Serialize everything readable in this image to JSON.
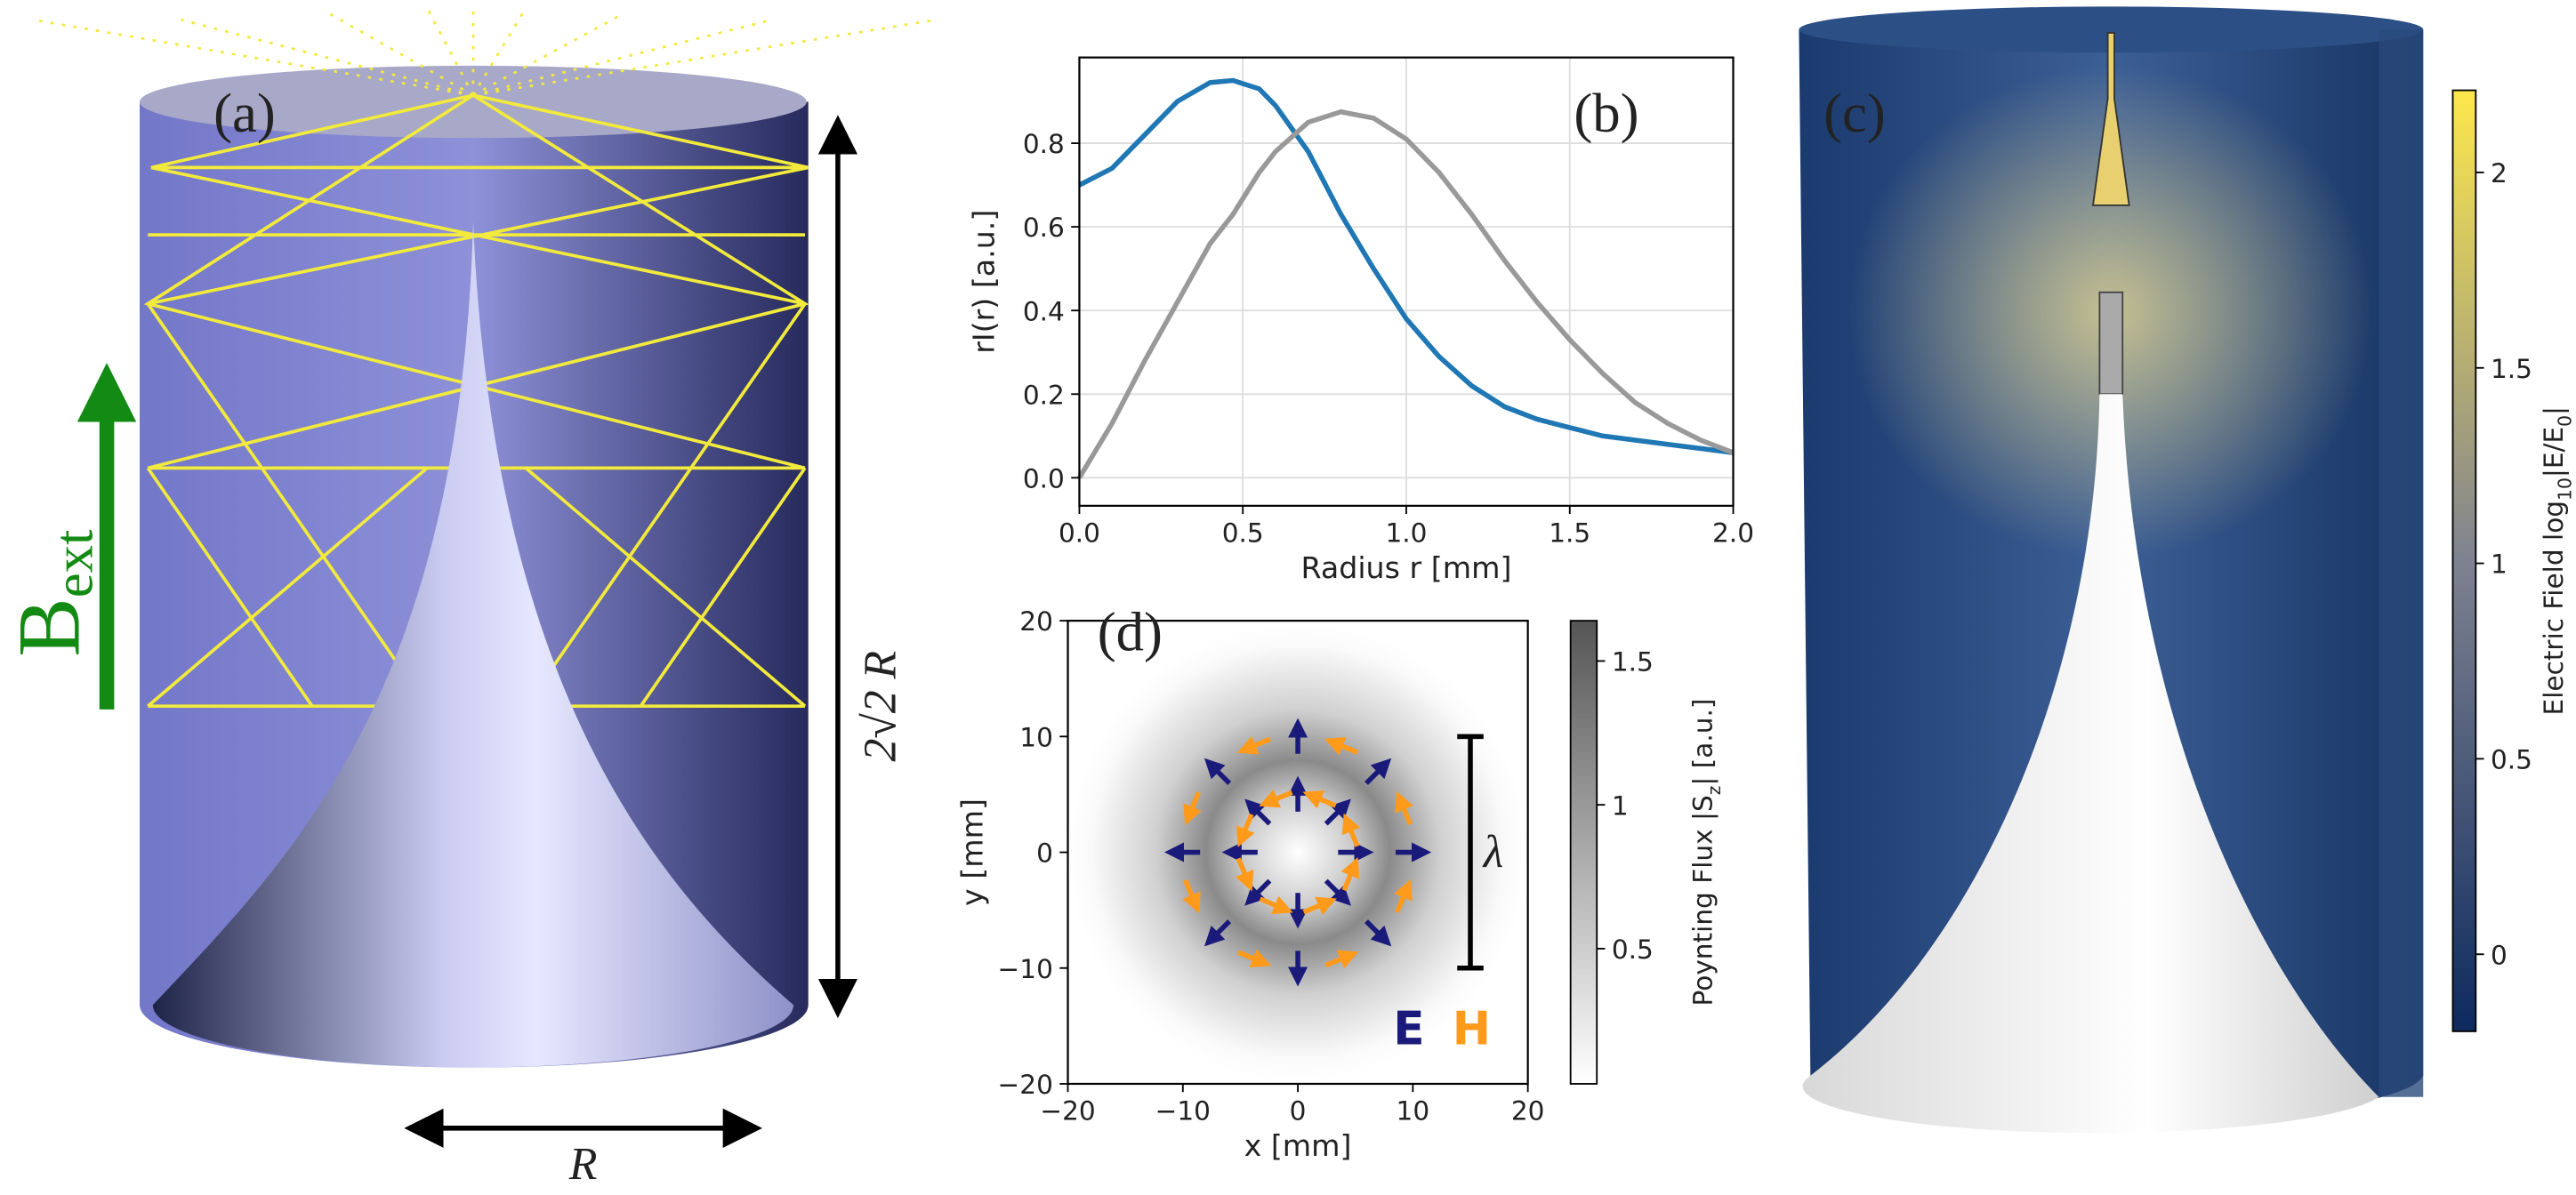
{
  "panel_a": {
    "label": "(a)",
    "field_main": "B",
    "field_sub": "ext",
    "height_label": "2√2 R",
    "width_label": "R"
  },
  "chart_data": [
    {
      "type": "line",
      "label": "(b)",
      "xlabel": "Radius r [mm]",
      "ylabel": "rI(r) [a.u.]",
      "x": [
        0,
        0.1,
        0.2,
        0.3,
        0.4,
        0.47,
        0.55,
        0.6,
        0.7,
        0.8,
        0.9,
        1.0,
        1.1,
        1.2,
        1.3,
        1.4,
        1.5,
        1.6,
        1.7,
        1.8,
        1.9,
        2.0
      ],
      "series": [
        {
          "color": "#1f77b4",
          "values": [
            0.7,
            0.74,
            0.82,
            0.9,
            0.945,
            0.95,
            0.93,
            0.89,
            0.78,
            0.63,
            0.5,
            0.38,
            0.29,
            0.22,
            0.17,
            0.14,
            0.12,
            0.1,
            0.09,
            0.08,
            0.07,
            0.06
          ]
        },
        {
          "color": "#999999",
          "values": [
            0.0,
            0.13,
            0.28,
            0.42,
            0.56,
            0.63,
            0.73,
            0.78,
            0.85,
            0.875,
            0.86,
            0.81,
            0.73,
            0.63,
            0.52,
            0.42,
            0.33,
            0.25,
            0.18,
            0.13,
            0.09,
            0.06
          ]
        }
      ],
      "xlim": [
        0,
        2
      ],
      "ylim": [
        -0.067,
        1.005
      ],
      "grid": true,
      "xticks": [
        {
          "value": 0,
          "label": "0.0"
        },
        {
          "value": 0.5,
          "label": "0.5"
        },
        {
          "value": 1,
          "label": "1.0"
        },
        {
          "value": 1.5,
          "label": "1.5"
        },
        {
          "value": 2,
          "label": "2.0"
        }
      ],
      "yticks": [
        {
          "value": 0,
          "label": "0.0"
        },
        {
          "value": 0.2,
          "label": "0.2"
        },
        {
          "value": 0.4,
          "label": "0.4"
        },
        {
          "value": 0.6,
          "label": "0.6"
        },
        {
          "value": 0.8,
          "label": "0.8"
        }
      ]
    },
    {
      "type": "quiver",
      "label": "(d)",
      "xlabel": "x [mm]",
      "ylabel": "y [mm]",
      "xlim": [
        -20,
        20
      ],
      "ylim": [
        -20,
        20
      ],
      "xticks": [
        {
          "value": -20,
          "label": "−20"
        },
        {
          "value": -10,
          "label": "−10"
        },
        0,
        10,
        20
      ],
      "yticks": [
        {
          "value": -20,
          "label": "−20"
        },
        {
          "value": -10,
          "label": "−10"
        },
        0,
        10,
        20
      ],
      "series": [
        {
          "name": "E",
          "color": "#1a1a7a",
          "x": [
            5,
            3.5,
            0,
            -3.5,
            -5,
            -3.5,
            0,
            3.5,
            10,
            7,
            0,
            -7,
            -10,
            -7,
            0,
            7
          ],
          "y": [
            0,
            3.5,
            5,
            3.5,
            0,
            -3.5,
            -5,
            -3.5,
            0,
            7,
            10,
            7,
            0,
            -7,
            -10,
            -7
          ],
          "u": [
            3,
            2.1,
            0,
            -2.1,
            -3,
            -2.1,
            0,
            2.1,
            3,
            2.1,
            0,
            -2.1,
            -3,
            -2.1,
            0,
            2.1
          ],
          "v": [
            0,
            2.1,
            3,
            2.1,
            0,
            -2.1,
            -3,
            -2.1,
            0,
            2.1,
            3,
            2.1,
            0,
            -2.1,
            -3,
            -2.1
          ]
        },
        {
          "name": "H",
          "color": "#ff9a1a",
          "x": [
            4.6,
            1.9,
            -1.9,
            -4.6,
            -4.6,
            -1.9,
            1.9,
            4.6,
            9.2,
            3.8,
            -3.8,
            -9.2,
            -9.2,
            -3.8,
            3.8,
            9.2
          ],
          "y": [
            1.9,
            4.6,
            4.6,
            1.9,
            -1.9,
            -4.6,
            -4.6,
            -1.9,
            3.8,
            9.2,
            9.2,
            3.8,
            -3.8,
            -9.2,
            -9.2,
            -3.8
          ],
          "u": [
            -1.15,
            -2.77,
            -2.77,
            -1.15,
            1.15,
            2.77,
            2.77,
            1.15,
            -1.15,
            -2.77,
            -2.77,
            -1.15,
            1.15,
            2.77,
            2.77,
            1.15
          ],
          "v": [
            2.77,
            1.15,
            -1.15,
            -2.77,
            -2.77,
            -1.15,
            1.15,
            2.77,
            2.77,
            1.15,
            -1.15,
            -2.77,
            -2.77,
            -1.15,
            1.15,
            2.77
          ]
        }
      ],
      "annotation": {
        "label": "λ",
        "x": 15,
        "y": [
          -10,
          10
        ]
      },
      "colorbar": {
        "label_main": "Poynting Flux |S",
        "label_sub": "z",
        "label_end": "| [a.u.]",
        "lim": [
          0.03,
          1.64
        ],
        "ticks": [
          0.5,
          1.0,
          1.5
        ]
      }
    },
    {
      "type": "render",
      "label": "(c)",
      "colorbar": {
        "label_main": "Electric Field log",
        "label_sub": "10",
        "label_mid": "|E/E",
        "label_sub2": "0",
        "label_end": "|",
        "lim": [
          -0.197,
          2.21
        ],
        "ticks": [
          0,
          0.5,
          1,
          1.5,
          2
        ]
      }
    }
  ]
}
